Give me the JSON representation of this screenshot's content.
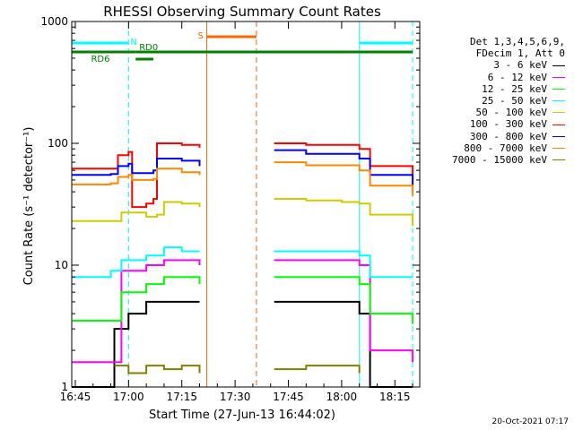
{
  "chart_data": {
    "type": "line",
    "title": "RHESSI Observing Summary Count Rates",
    "xlabel": "Start Time (27-Jun-13 16:44:02)",
    "ylabel": "Count Rate (s⁻¹ detector⁻¹)",
    "yscale": "log",
    "xlim": [
      "16:44",
      "18:22"
    ],
    "ylim": [
      1,
      1000
    ],
    "x_ticks": [
      "16:45",
      "17:00",
      "17:15",
      "17:30",
      "17:45",
      "18:00",
      "18:15"
    ],
    "y_ticks": [
      "1",
      "10",
      "100",
      "1000"
    ],
    "legend_header": [
      "Det 1,3,4,5,6,9,",
      "FDecim 1, Att 0"
    ],
    "series": [
      {
        "name": "3 - 6 keV",
        "color": "#000000",
        "points": [
          [
            "16:44",
            1
          ],
          [
            "16:55",
            1
          ],
          [
            "16:56",
            3
          ],
          [
            "17:00",
            4
          ],
          [
            "17:05",
            5
          ],
          [
            "17:10",
            5
          ],
          [
            "17:15",
            5
          ],
          [
            "17:20",
            5
          ],
          [
            "17:21",
            null
          ],
          [
            "17:40",
            null
          ],
          [
            "17:41",
            5
          ],
          [
            "17:50",
            5
          ],
          [
            "18:00",
            5
          ],
          [
            "18:05",
            4
          ],
          [
            "18:08",
            1
          ],
          [
            "18:20",
            1
          ]
        ]
      },
      {
        "name": "6 - 12 keV",
        "color": "#ff00ff",
        "points": [
          [
            "16:44",
            1.6
          ],
          [
            "16:55",
            1.6
          ],
          [
            "16:58",
            9
          ],
          [
            "17:05",
            10
          ],
          [
            "17:08",
            10
          ],
          [
            "17:10",
            11
          ],
          [
            "17:15",
            11
          ],
          [
            "17:20",
            10
          ],
          [
            "17:21",
            null
          ],
          [
            "17:40",
            null
          ],
          [
            "17:41",
            11
          ],
          [
            "17:50",
            11
          ],
          [
            "18:00",
            11
          ],
          [
            "18:05",
            10
          ],
          [
            "18:08",
            2
          ],
          [
            "18:20",
            1.6
          ]
        ]
      },
      {
        "name": "12 - 25 keV",
        "color": "#00ff00",
        "points": [
          [
            "16:44",
            3.5
          ],
          [
            "16:55",
            3.5
          ],
          [
            "16:58",
            6
          ],
          [
            "17:05",
            7
          ],
          [
            "17:08",
            7
          ],
          [
            "17:10",
            8
          ],
          [
            "17:15",
            8
          ],
          [
            "17:20",
            7
          ],
          [
            "17:21",
            null
          ],
          [
            "17:40",
            null
          ],
          [
            "17:41",
            8
          ],
          [
            "17:50",
            8
          ],
          [
            "18:00",
            8
          ],
          [
            "18:05",
            7
          ],
          [
            "18:08",
            4
          ],
          [
            "18:20",
            3.3
          ]
        ]
      },
      {
        "name": "25 - 50 keV",
        "color": "#00ffff",
        "points": [
          [
            "16:44",
            8
          ],
          [
            "16:55",
            9
          ],
          [
            "16:58",
            11
          ],
          [
            "17:05",
            12
          ],
          [
            "17:08",
            12
          ],
          [
            "17:10",
            14
          ],
          [
            "17:15",
            13
          ],
          [
            "17:20",
            13
          ],
          [
            "17:21",
            null
          ],
          [
            "17:40",
            null
          ],
          [
            "17:41",
            13
          ],
          [
            "17:50",
            13
          ],
          [
            "18:00",
            13
          ],
          [
            "18:05",
            12
          ],
          [
            "18:08",
            8
          ],
          [
            "18:20",
            8
          ]
        ]
      },
      {
        "name": "50 - 100 keV",
        "color": "#cccc00",
        "points": [
          [
            "16:44",
            23
          ],
          [
            "16:55",
            23
          ],
          [
            "16:58",
            27
          ],
          [
            "17:05",
            25
          ],
          [
            "17:08",
            26
          ],
          [
            "17:10",
            33
          ],
          [
            "17:15",
            32
          ],
          [
            "17:20",
            30
          ],
          [
            "17:21",
            null
          ],
          [
            "17:40",
            null
          ],
          [
            "17:41",
            35
          ],
          [
            "17:50",
            34
          ],
          [
            "18:00",
            33
          ],
          [
            "18:05",
            32
          ],
          [
            "18:08",
            26
          ],
          [
            "18:20",
            21
          ]
        ]
      },
      {
        "name": "100 - 300 keV",
        "color": "#ff0000",
        "points": [
          [
            "16:44",
            62
          ],
          [
            "16:55",
            62
          ],
          [
            "16:57",
            80
          ],
          [
            "17:00",
            85
          ],
          [
            "17:01",
            30
          ],
          [
            "17:05",
            32
          ],
          [
            "17:07",
            35
          ],
          [
            "17:08",
            100
          ],
          [
            "17:15",
            97
          ],
          [
            "17:20",
            92
          ],
          [
            "17:21",
            null
          ],
          [
            "17:40",
            null
          ],
          [
            "17:41",
            100
          ],
          [
            "17:50",
            97
          ],
          [
            "18:00",
            97
          ],
          [
            "18:05",
            90
          ],
          [
            "18:08",
            65
          ],
          [
            "18:20",
            55
          ]
        ]
      },
      {
        "name": "300 - 800 keV",
        "color": "#0000ff",
        "points": [
          [
            "16:44",
            55
          ],
          [
            "16:55",
            56
          ],
          [
            "16:57",
            65
          ],
          [
            "17:00",
            68
          ],
          [
            "17:01",
            57
          ],
          [
            "17:07",
            60
          ],
          [
            "17:08",
            75
          ],
          [
            "17:15",
            72
          ],
          [
            "17:20",
            65
          ],
          [
            "17:21",
            null
          ],
          [
            "17:40",
            null
          ],
          [
            "17:41",
            88
          ],
          [
            "17:50",
            82
          ],
          [
            "18:00",
            82
          ],
          [
            "18:05",
            75
          ],
          [
            "18:08",
            55
          ],
          [
            "18:20",
            45
          ]
        ]
      },
      {
        "name": "800 - 7000 keV",
        "color": "#ff8800",
        "points": [
          [
            "16:44",
            46
          ],
          [
            "16:55",
            47
          ],
          [
            "16:57",
            53
          ],
          [
            "17:00",
            55
          ],
          [
            "17:01",
            50
          ],
          [
            "17:07",
            51
          ],
          [
            "17:08",
            62
          ],
          [
            "17:15",
            58
          ],
          [
            "17:20",
            55
          ],
          [
            "17:21",
            null
          ],
          [
            "17:40",
            null
          ],
          [
            "17:41",
            70
          ],
          [
            "17:50",
            66
          ],
          [
            "18:00",
            66
          ],
          [
            "18:05",
            60
          ],
          [
            "18:08",
            45
          ],
          [
            "18:20",
            37
          ]
        ]
      },
      {
        "name": "7000 - 15000 keV",
        "color": "#808000",
        "points": [
          [
            "16:44",
            null
          ],
          [
            "16:55",
            null
          ],
          [
            "16:56",
            1.5
          ],
          [
            "17:00",
            1.3
          ],
          [
            "17:05",
            1.5
          ],
          [
            "17:10",
            1.4
          ],
          [
            "17:15",
            1.5
          ],
          [
            "17:20",
            1.3
          ],
          [
            "17:21",
            null
          ],
          [
            "17:40",
            null
          ],
          [
            "17:41",
            1.4
          ],
          [
            "17:50",
            1.5
          ],
          [
            "18:00",
            1.5
          ],
          [
            "18:05",
            1.3
          ],
          [
            "18:08",
            null
          ],
          [
            "18:20",
            null
          ]
        ]
      }
    ],
    "bands": [
      {
        "label": "N",
        "color": "#00ffff",
        "spans": [
          [
            "16:44",
            "17:00"
          ],
          [
            "18:05",
            "18:20"
          ]
        ],
        "level": "top"
      },
      {
        "label": "RD6",
        "color": "#008000",
        "spans": [
          [
            "16:44",
            "17:02"
          ]
        ],
        "level": "upper"
      },
      {
        "label": "RD0",
        "color": "#008000",
        "spans": [
          [
            "17:02",
            "18:20"
          ]
        ],
        "level": "upper"
      },
      {
        "label": "S",
        "color": "#ff6600",
        "spans": [
          [
            "17:22",
            "17:36"
          ]
        ],
        "level": "top"
      }
    ],
    "vlines": [
      {
        "t": "17:00",
        "color": "#00ffff",
        "style": "dashed"
      },
      {
        "t": "18:05",
        "color": "#00ffff",
        "style": "solid"
      },
      {
        "t": "18:20",
        "color": "#00ffff",
        "style": "dashed"
      },
      {
        "t": "17:22",
        "color": "#ff6600",
        "style": "solid"
      },
      {
        "t": "17:36",
        "color": "#ff6600",
        "style": "dashed"
      }
    ],
    "footer_timestamp": "20-Oct-2021 07:17"
  }
}
